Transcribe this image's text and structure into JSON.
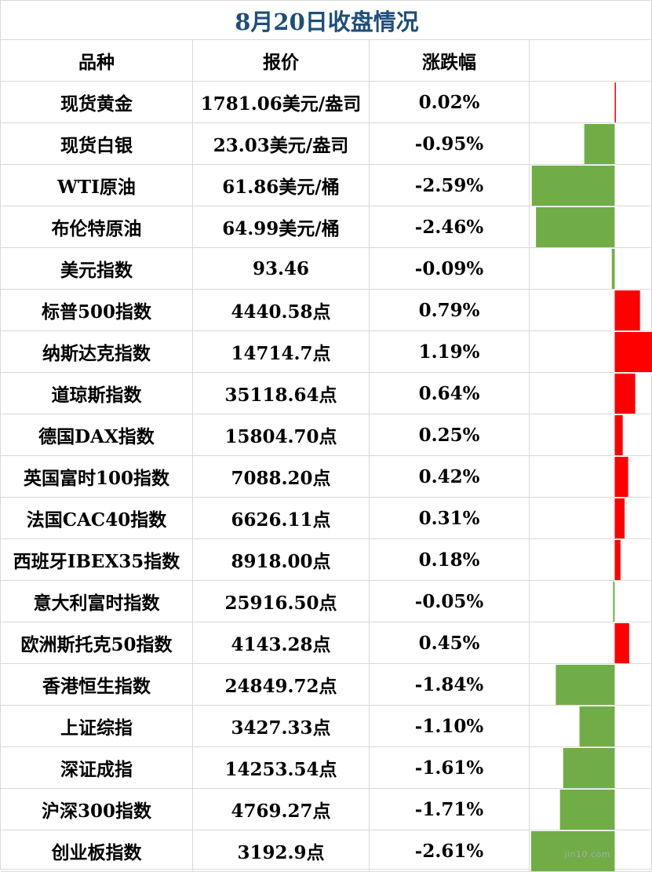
{
  "title": "8月20日收盘情况",
  "headers": {
    "name": "品种",
    "price": "报价",
    "change": "涨跌幅"
  },
  "colors": {
    "positive": "#ff0000",
    "negative": "#70ad47",
    "title": "#1f4e79"
  },
  "watermark": "jin10.com",
  "chart_data": {
    "type": "bar",
    "orientation": "horizontal",
    "categories": [
      "现货黄金",
      "现货白银",
      "WTI原油",
      "布伦特原油",
      "美元指数",
      "标普500指数",
      "纳斯达克指数",
      "道琼斯指数",
      "德国DAX指数",
      "英国富时100指数",
      "法国CAC40指数",
      "西班牙IBEX35指数",
      "意大利富时指数",
      "欧洲斯托克50指数",
      "香港恒生指数",
      "上证综指",
      "深证成指",
      "沪深300指数",
      "创业板指数"
    ],
    "prices": [
      "1781.06美元/盎司",
      "23.03美元/盎司",
      "61.86美元/桶",
      "64.99美元/桶",
      "93.46",
      "4440.58点",
      "14714.7点",
      "35118.64点",
      "15804.70点",
      "7088.20点",
      "6626.11点",
      "8918.00点",
      "25916.50点",
      "4143.28点",
      "24849.72点",
      "3427.33点",
      "14253.54点",
      "4769.27点",
      "3192.9点"
    ],
    "labels": [
      "0.02%",
      "-0.95%",
      "-2.59%",
      "-2.46%",
      "-0.09%",
      "0.79%",
      "1.19%",
      "0.64%",
      "0.25%",
      "0.42%",
      "0.31%",
      "0.18%",
      "-0.05%",
      "0.45%",
      "-1.84%",
      "-1.10%",
      "-1.61%",
      "-1.71%",
      "-2.61%"
    ],
    "values": [
      0.02,
      -0.95,
      -2.59,
      -2.46,
      -0.09,
      0.79,
      1.19,
      0.64,
      0.25,
      0.42,
      0.31,
      0.18,
      -0.05,
      0.45,
      -1.84,
      -1.1,
      -1.61,
      -1.71,
      -2.61
    ],
    "xlim": [
      -2.61,
      1.19
    ]
  }
}
